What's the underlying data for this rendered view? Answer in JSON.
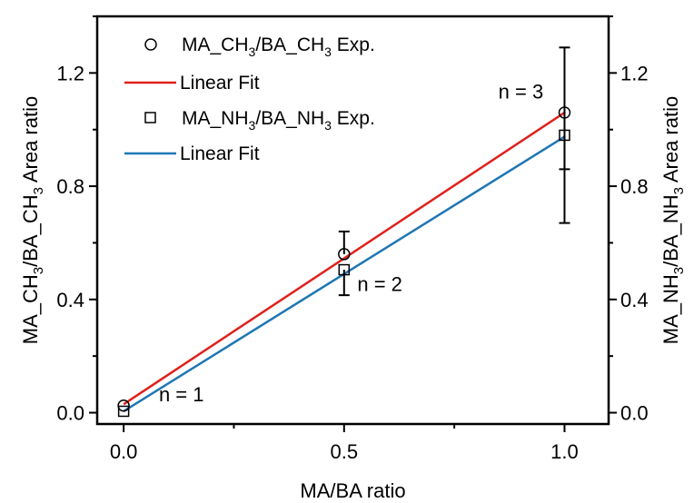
{
  "chart_data": {
    "type": "scatter",
    "xlabel": "MA/BA ratio",
    "ylabel_left": {
      "main": "MA_CH",
      "sub": "3",
      "mid": "/BA_CH",
      "sub2": "3",
      "tail": " Area ratio"
    },
    "ylabel_right": {
      "main": "MA_NH",
      "sub": "3",
      "mid": "/BA_NH",
      "sub2": "3",
      "tail": " Area ratio"
    },
    "xlim": [
      -0.06,
      1.1
    ],
    "ylim": [
      -0.04,
      1.4
    ],
    "x_ticks": [
      0.0,
      0.5,
      1.0
    ],
    "x_tick_labels": [
      "0.0",
      "0.5",
      "1.0"
    ],
    "y_ticks": [
      0.0,
      0.4,
      0.8,
      1.2
    ],
    "y_tick_labels": [
      "0.0",
      "0.4",
      "0.8",
      "1.2"
    ],
    "grid": false,
    "legend_position": "top-left",
    "series": [
      {
        "name": {
          "main": "MA_CH",
          "sub": "3",
          "mid": "/BA_CH",
          "sub2": "3",
          "tail": " Exp."
        },
        "marker": "circle",
        "x": [
          0.0,
          0.5,
          1.0
        ],
        "y": [
          0.025,
          0.56,
          1.06
        ],
        "yerr_low": [
          0.0,
          0.0,
          0.2
        ],
        "yerr_high": [
          0.0,
          0.08,
          0.23
        ]
      },
      {
        "name": {
          "main": "MA_NH",
          "sub": "3",
          "mid": "/BA_NH",
          "sub2": "3",
          "tail": " Exp."
        },
        "marker": "square",
        "x": [
          0.0,
          0.5,
          1.0
        ],
        "y": [
          0.005,
          0.505,
          0.98
        ],
        "yerr_low": [
          0.0,
          0.09,
          0.31
        ],
        "yerr_high": [
          0.0,
          0.0,
          0.0
        ]
      }
    ],
    "fits": [
      {
        "name": "Linear Fit",
        "color": "#e0201b",
        "x": [
          0.0,
          1.0
        ],
        "y": [
          0.03,
          1.06
        ]
      },
      {
        "name": "Linear Fit",
        "color": "#1f77b4",
        "x": [
          0.0,
          1.0
        ],
        "y": [
          0.005,
          0.975
        ]
      }
    ],
    "annotations": [
      {
        "text": "n = 1",
        "x": 0.08,
        "y": 0.04
      },
      {
        "text": "n = 2",
        "x": 0.53,
        "y": 0.43
      },
      {
        "text": "n = 3",
        "x": 0.85,
        "y": 1.11
      }
    ]
  }
}
